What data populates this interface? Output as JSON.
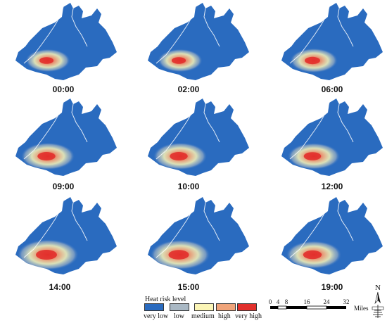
{
  "colors": {
    "very_low": "#2a6bbf",
    "low": "#a9b8c4",
    "medium": "#fbf5b6",
    "high": "#f0a47a",
    "very_high": "#e2302c",
    "river": "#ffffff"
  },
  "panels": [
    {
      "time": "00:00",
      "hotspot_intensity": 0.45
    },
    {
      "time": "02:00",
      "hotspot_intensity": 0.45
    },
    {
      "time": "06:00",
      "hotspot_intensity": 0.55
    },
    {
      "time": "09:00",
      "hotspot_intensity": 0.75
    },
    {
      "time": "10:00",
      "hotspot_intensity": 0.75
    },
    {
      "time": "12:00",
      "hotspot_intensity": 0.7
    },
    {
      "time": "14:00",
      "hotspot_intensity": 1.0
    },
    {
      "time": "15:00",
      "hotspot_intensity": 0.95
    },
    {
      "time": "19:00",
      "hotspot_intensity": 0.8
    }
  ],
  "legend": {
    "title": "Heat risk level",
    "items": [
      {
        "label": "very low",
        "color": "#2a6bbf"
      },
      {
        "label": "low",
        "color": "#a9b8c4"
      },
      {
        "label": "medium",
        "color": "#fbf5b6"
      },
      {
        "label": "high",
        "color": "#f0a47a"
      },
      {
        "label": "very high",
        "color": "#e2302c"
      }
    ]
  },
  "scale_bar": {
    "ticks": [
      "0",
      "4",
      "8",
      "16",
      "24",
      "32"
    ],
    "units": "Miles"
  },
  "north_arrow": {
    "letter": "N",
    "icon": "north-arrow-icon"
  }
}
